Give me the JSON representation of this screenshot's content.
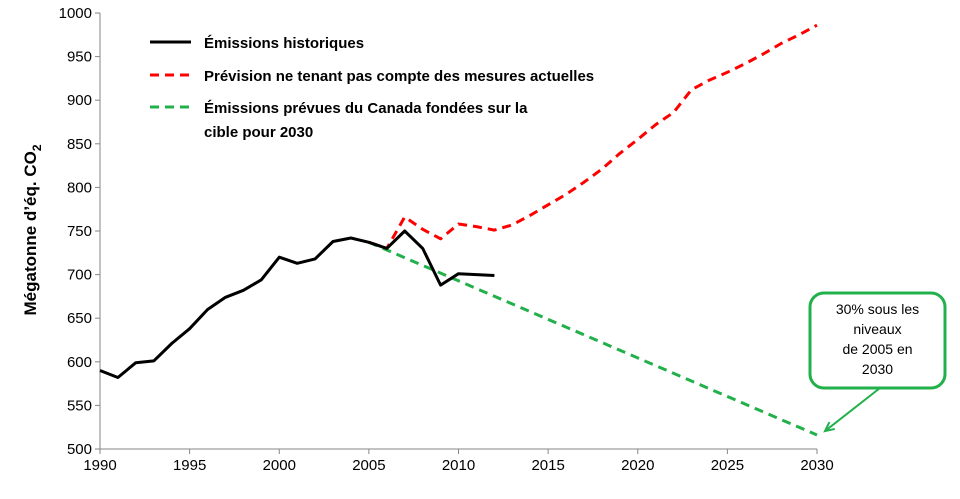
{
  "chart_data": {
    "type": "line",
    "ylabel": "Mégatonne d’éq. CO",
    "ylabel_sub": "2",
    "xlim": [
      1990,
      2030
    ],
    "ylim": [
      500,
      1000
    ],
    "x_ticks": [
      1990,
      1995,
      2000,
      2005,
      2010,
      2015,
      2020,
      2025,
      2030
    ],
    "y_ticks": [
      500,
      550,
      600,
      650,
      700,
      750,
      800,
      850,
      900,
      950,
      1000
    ],
    "grid": false,
    "legend_position": "top-left",
    "series": [
      {
        "name": "Émissions historiques",
        "color": "#000000",
        "style": "solid",
        "x": [
          1990,
          1991,
          1992,
          1993,
          1994,
          1995,
          1996,
          1997,
          1998,
          1999,
          2000,
          2001,
          2002,
          2003,
          2004,
          2005,
          2006,
          2007,
          2008,
          2009,
          2010,
          2011,
          2012
        ],
        "y": [
          590,
          582,
          599,
          601,
          621,
          638,
          660,
          674,
          682,
          694,
          720,
          713,
          718,
          738,
          742,
          737,
          730,
          750,
          730,
          688,
          701,
          700,
          699
        ]
      },
      {
        "name": "Prévision ne tenant pas compte des mesures actuelles",
        "color": "#ff0000",
        "style": "dashed",
        "x": [
          2005,
          2006,
          2007,
          2008,
          2009,
          2010,
          2011,
          2012,
          2013,
          2014,
          2015,
          2016,
          2017,
          2018,
          2019,
          2020,
          2021,
          2022,
          2023,
          2024,
          2025,
          2026,
          2027,
          2028,
          2029,
          2030
        ],
        "y": [
          737,
          730,
          766,
          752,
          741,
          758,
          755,
          751,
          757,
          768,
          780,
          792,
          806,
          821,
          839,
          855,
          872,
          886,
          912,
          923,
          932,
          942,
          953,
          965,
          975,
          986
        ]
      },
      {
        "name": "Émissions prévues du Canada fondées sur la cible pour 2030",
        "name_lines": [
          "Émissions prévues du Canada fondées sur la",
          "cible pour 2030"
        ],
        "color": "#22b04b",
        "style": "dashed",
        "x": [
          2005,
          2030
        ],
        "y": [
          737,
          516
        ]
      }
    ],
    "annotations": [
      {
        "text_lines": [
          "30% sous les",
          "niveaux",
          "de 2005 en",
          "2030"
        ],
        "target": [
          2030,
          516
        ],
        "border_color": "#22b04b"
      }
    ]
  }
}
